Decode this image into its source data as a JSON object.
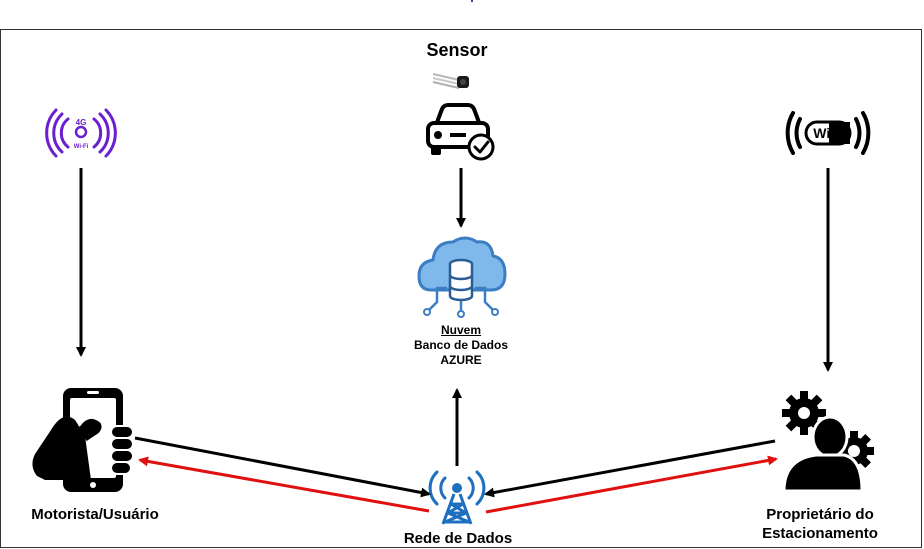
{
  "labels": {
    "sensor": "Sensor",
    "cloud_title": "Nuvem",
    "cloud_line2": "Banco de Dados",
    "cloud_line3": "AZURE",
    "driver": "Motorista/Usuário",
    "network": "Rede de Dados",
    "owner_line1": "Proprietário do",
    "owner_line2": "Estacionamento"
  },
  "icons": {
    "mobile_network": {
      "name": "4g-wifi-icon",
      "text_top": "4G",
      "text_bottom": "Wi-Fi",
      "color": "#6a1fd0"
    },
    "wifi": {
      "name": "wifi-icon",
      "text": "WiFi",
      "color": "#000000"
    },
    "sensor": {
      "name": "sensor-icon"
    },
    "car": {
      "name": "car-check-icon"
    },
    "cloud_db": {
      "name": "cloud-database-icon",
      "color": "#5b9bd5"
    },
    "phone": {
      "name": "hand-phone-icon"
    },
    "tower": {
      "name": "network-tower-icon",
      "color": "#1f6fc0"
    },
    "owner": {
      "name": "user-gears-icon"
    }
  },
  "colors": {
    "arrow_black": "#000000",
    "arrow_red": "#e01010"
  }
}
